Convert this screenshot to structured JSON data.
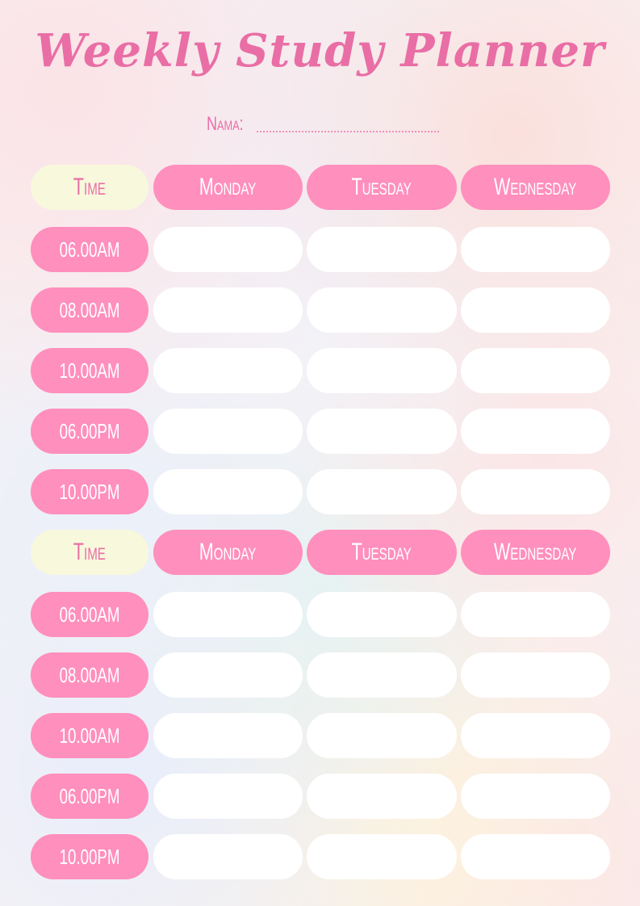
{
  "title": "Weekly Study Planner",
  "name_label": "Nama:",
  "colors": {
    "accent": "#ff8fbd",
    "title": "#e96ea5",
    "time_header": "#f8f8dc",
    "cell": "#ffffff"
  },
  "blocks": [
    {
      "header": [
        "Time",
        "Monday",
        "Tuesday",
        "Wednesday"
      ],
      "times": [
        "06.00AM",
        "08.00AM",
        "10.00AM",
        "06.00PM",
        "10.00PM"
      ]
    },
    {
      "header": [
        "Time",
        "Monday",
        "Tuesday",
        "Wednesday"
      ],
      "times": [
        "06.00AM",
        "08.00AM",
        "10.00AM",
        "06.00PM",
        "10.00PM"
      ]
    }
  ]
}
